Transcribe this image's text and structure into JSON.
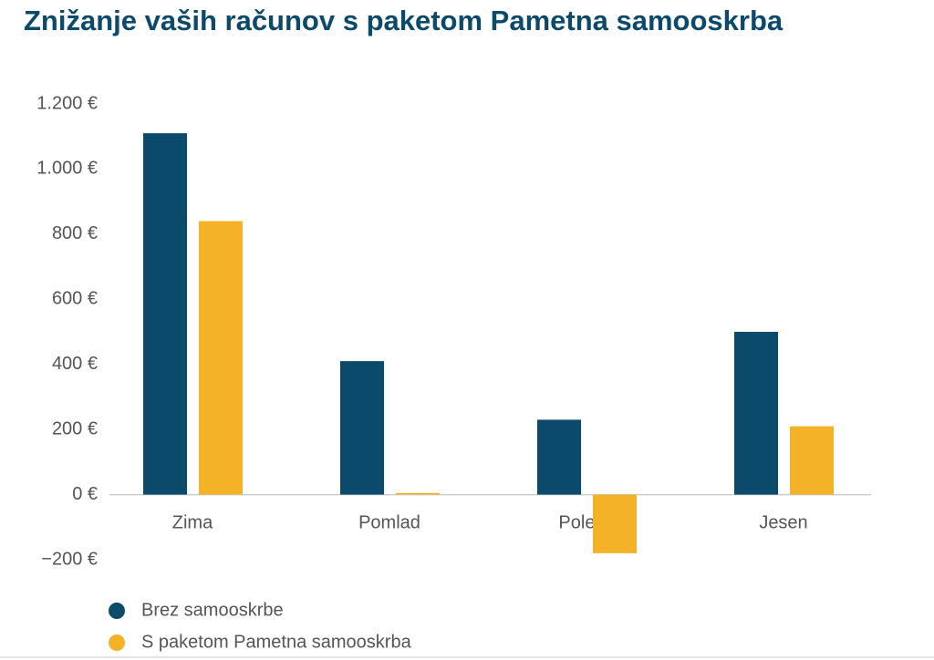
{
  "chart_data": {
    "type": "bar",
    "title": "Znižanje vaših računov s paketom Pametna samooskrba",
    "categories": [
      "Zima",
      "Pomlad",
      "Poletje",
      "Jesen"
    ],
    "series": [
      {
        "name": "Brez samooskrbe",
        "color": "#0b4a6a",
        "values": [
          1110,
          410,
          230,
          500
        ]
      },
      {
        "name": "S paketom Pametna samooskrba",
        "color": "#f3b228",
        "values": [
          840,
          5,
          -180,
          210
        ]
      }
    ],
    "ylim": [
      -200,
      1200
    ],
    "yticks": [
      {
        "value": -200,
        "label": "−200 €"
      },
      {
        "value": 0,
        "label": "0 €"
      },
      {
        "value": 200,
        "label": "200 €"
      },
      {
        "value": 400,
        "label": "400 €"
      },
      {
        "value": 600,
        "label": "600 €"
      },
      {
        "value": 800,
        "label": "800 €"
      },
      {
        "value": 1000,
        "label": "1.000 €"
      },
      {
        "value": 1200,
        "label": "1.200 €"
      }
    ],
    "grid": false,
    "legend": "bottom-left"
  }
}
